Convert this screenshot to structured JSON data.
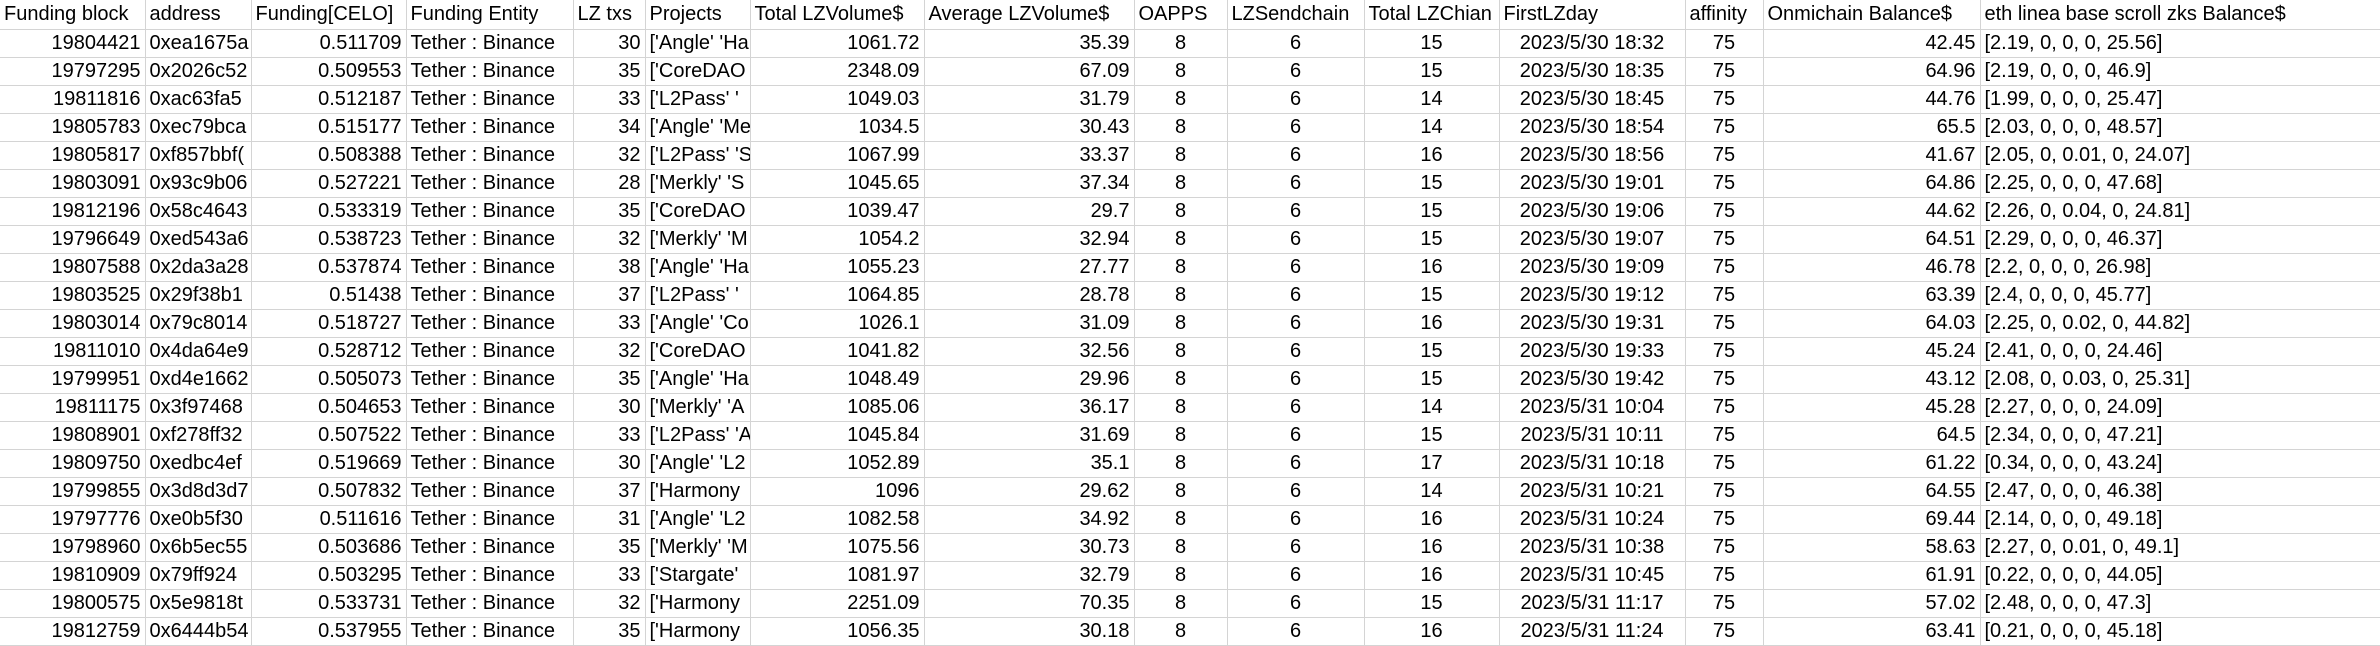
{
  "headers": [
    "Funding block",
    "address",
    "Funding[CELO]",
    "Funding Entity",
    "LZ txs",
    "Projects",
    "Total LZVolume$",
    "Average LZVolume$",
    "OAPPS",
    "LZSendchain",
    "Total LZChian",
    "FirstLZday",
    "affinity",
    "Onmichain Balance$",
    "eth linea base scroll zks Balance$"
  ],
  "rows": [
    [
      "19804421",
      "0xea1675a",
      "0.511709",
      "Tether : Binance",
      "30",
      "['Angle' 'Ha",
      "1061.72",
      "35.39",
      "8",
      "6",
      "15",
      "2023/5/30 18:32",
      "75",
      "42.45",
      "[2.19, 0, 0, 0, 25.56]"
    ],
    [
      "19797295",
      "0x2026c52",
      "0.509553",
      "Tether : Binance",
      "35",
      "['CoreDAO",
      "2348.09",
      "67.09",
      "8",
      "6",
      "15",
      "2023/5/30 18:35",
      "75",
      "64.96",
      "[2.19, 0, 0, 0, 46.9]"
    ],
    [
      "19811816",
      "0xac63fa5",
      "0.512187",
      "Tether : Binance",
      "33",
      "['L2Pass' '",
      "1049.03",
      "31.79",
      "8",
      "6",
      "14",
      "2023/5/30 18:45",
      "75",
      "44.76",
      "[1.99, 0, 0, 0, 25.47]"
    ],
    [
      "19805783",
      "0xec79bca",
      "0.515177",
      "Tether : Binance",
      "34",
      "['Angle' 'Me",
      "1034.5",
      "30.43",
      "8",
      "6",
      "14",
      "2023/5/30 18:54",
      "75",
      "65.5",
      "[2.03, 0, 0, 0, 48.57]"
    ],
    [
      "19805817",
      "0xf857bbf(",
      "0.508388",
      "Tether : Binance",
      "32",
      "['L2Pass' 'S",
      "1067.99",
      "33.37",
      "8",
      "6",
      "16",
      "2023/5/30 18:56",
      "75",
      "41.67",
      "[2.05, 0, 0.01, 0, 24.07]"
    ],
    [
      "19803091",
      "0x93c9b06",
      "0.527221",
      "Tether : Binance",
      "28",
      "['Merkly' 'S",
      "1045.65",
      "37.34",
      "8",
      "6",
      "15",
      "2023/5/30 19:01",
      "75",
      "64.86",
      "[2.25, 0, 0, 0, 47.68]"
    ],
    [
      "19812196",
      "0x58c4643",
      "0.533319",
      "Tether : Binance",
      "35",
      "['CoreDAO",
      "1039.47",
      "29.7",
      "8",
      "6",
      "15",
      "2023/5/30 19:06",
      "75",
      "44.62",
      "[2.26, 0, 0.04, 0, 24.81]"
    ],
    [
      "19796649",
      "0xed543a6",
      "0.538723",
      "Tether : Binance",
      "32",
      "['Merkly' 'M",
      "1054.2",
      "32.94",
      "8",
      "6",
      "15",
      "2023/5/30 19:07",
      "75",
      "64.51",
      "[2.29, 0, 0, 0, 46.37]"
    ],
    [
      "19807588",
      "0x2da3a28",
      "0.537874",
      "Tether : Binance",
      "38",
      "['Angle' 'Ha",
      "1055.23",
      "27.77",
      "8",
      "6",
      "16",
      "2023/5/30 19:09",
      "75",
      "46.78",
      "[2.2, 0, 0, 0, 26.98]"
    ],
    [
      "19803525",
      "0x29f38b1",
      "0.51438",
      "Tether : Binance",
      "37",
      "['L2Pass' '",
      "1064.85",
      "28.78",
      "8",
      "6",
      "15",
      "2023/5/30 19:12",
      "75",
      "63.39",
      "[2.4, 0, 0, 0, 45.77]"
    ],
    [
      "19803014",
      "0x79c8014",
      "0.518727",
      "Tether : Binance",
      "33",
      "['Angle' 'Co",
      "1026.1",
      "31.09",
      "8",
      "6",
      "16",
      "2023/5/30 19:31",
      "75",
      "64.03",
      "[2.25, 0, 0.02, 0, 44.82]"
    ],
    [
      "19811010",
      "0x4da64e9",
      "0.528712",
      "Tether : Binance",
      "32",
      "['CoreDAO",
      "1041.82",
      "32.56",
      "8",
      "6",
      "15",
      "2023/5/30 19:33",
      "75",
      "45.24",
      "[2.41, 0, 0, 0, 24.46]"
    ],
    [
      "19799951",
      "0xd4e1662",
      "0.505073",
      "Tether : Binance",
      "35",
      "['Angle' 'Ha",
      "1048.49",
      "29.96",
      "8",
      "6",
      "15",
      "2023/5/30 19:42",
      "75",
      "43.12",
      "[2.08, 0, 0.03, 0, 25.31]"
    ],
    [
      "19811175",
      "0x3f97468",
      "0.504653",
      "Tether : Binance",
      "30",
      "['Merkly' 'A",
      "1085.06",
      "36.17",
      "8",
      "6",
      "14",
      "2023/5/31 10:04",
      "75",
      "45.28",
      "[2.27, 0, 0, 0, 24.09]"
    ],
    [
      "19808901",
      "0xf278ff32",
      "0.507522",
      "Tether : Binance",
      "33",
      "['L2Pass' 'A",
      "1045.84",
      "31.69",
      "8",
      "6",
      "15",
      "2023/5/31 10:11",
      "75",
      "64.5",
      "[2.34, 0, 0, 0, 47.21]"
    ],
    [
      "19809750",
      "0xedbc4ef",
      "0.519669",
      "Tether : Binance",
      "30",
      "['Angle' 'L2",
      "1052.89",
      "35.1",
      "8",
      "6",
      "17",
      "2023/5/31 10:18",
      "75",
      "61.22",
      "[0.34, 0, 0, 0, 43.24]"
    ],
    [
      "19799855",
      "0x3d8d3d7",
      "0.507832",
      "Tether : Binance",
      "37",
      "['Harmony",
      "1096",
      "29.62",
      "8",
      "6",
      "14",
      "2023/5/31 10:21",
      "75",
      "64.55",
      "[2.47, 0, 0, 0, 46.38]"
    ],
    [
      "19797776",
      "0xe0b5f30",
      "0.511616",
      "Tether : Binance",
      "31",
      "['Angle' 'L2",
      "1082.58",
      "34.92",
      "8",
      "6",
      "16",
      "2023/5/31 10:24",
      "75",
      "69.44",
      "[2.14, 0, 0, 0, 49.18]"
    ],
    [
      "19798960",
      "0x6b5ec55",
      "0.503686",
      "Tether : Binance",
      "35",
      "['Merkly' 'M",
      "1075.56",
      "30.73",
      "8",
      "6",
      "16",
      "2023/5/31 10:38",
      "75",
      "58.63",
      "[2.27, 0, 0.01, 0, 49.1]"
    ],
    [
      "19810909",
      "0x79ff924",
      "0.503295",
      "Tether : Binance",
      "33",
      "['Stargate'",
      "1081.97",
      "32.79",
      "8",
      "6",
      "16",
      "2023/5/31 10:45",
      "75",
      "61.91",
      "[0.22, 0, 0, 0, 44.05]"
    ],
    [
      "19800575",
      "0x5e9818t",
      "0.533731",
      "Tether : Binance",
      "32",
      "['Harmony",
      "2251.09",
      "70.35",
      "8",
      "6",
      "15",
      "2023/5/31 11:17",
      "75",
      "57.02",
      "[2.48, 0, 0, 0, 47.3]"
    ],
    [
      "19812759",
      "0x6444b54",
      "0.537955",
      "Tether : Binance",
      "35",
      "['Harmony",
      "1056.35",
      "30.18",
      "8",
      "6",
      "16",
      "2023/5/31 11:24",
      "75",
      "63.41",
      "[0.21, 0, 0, 0, 45.18]"
    ]
  ]
}
